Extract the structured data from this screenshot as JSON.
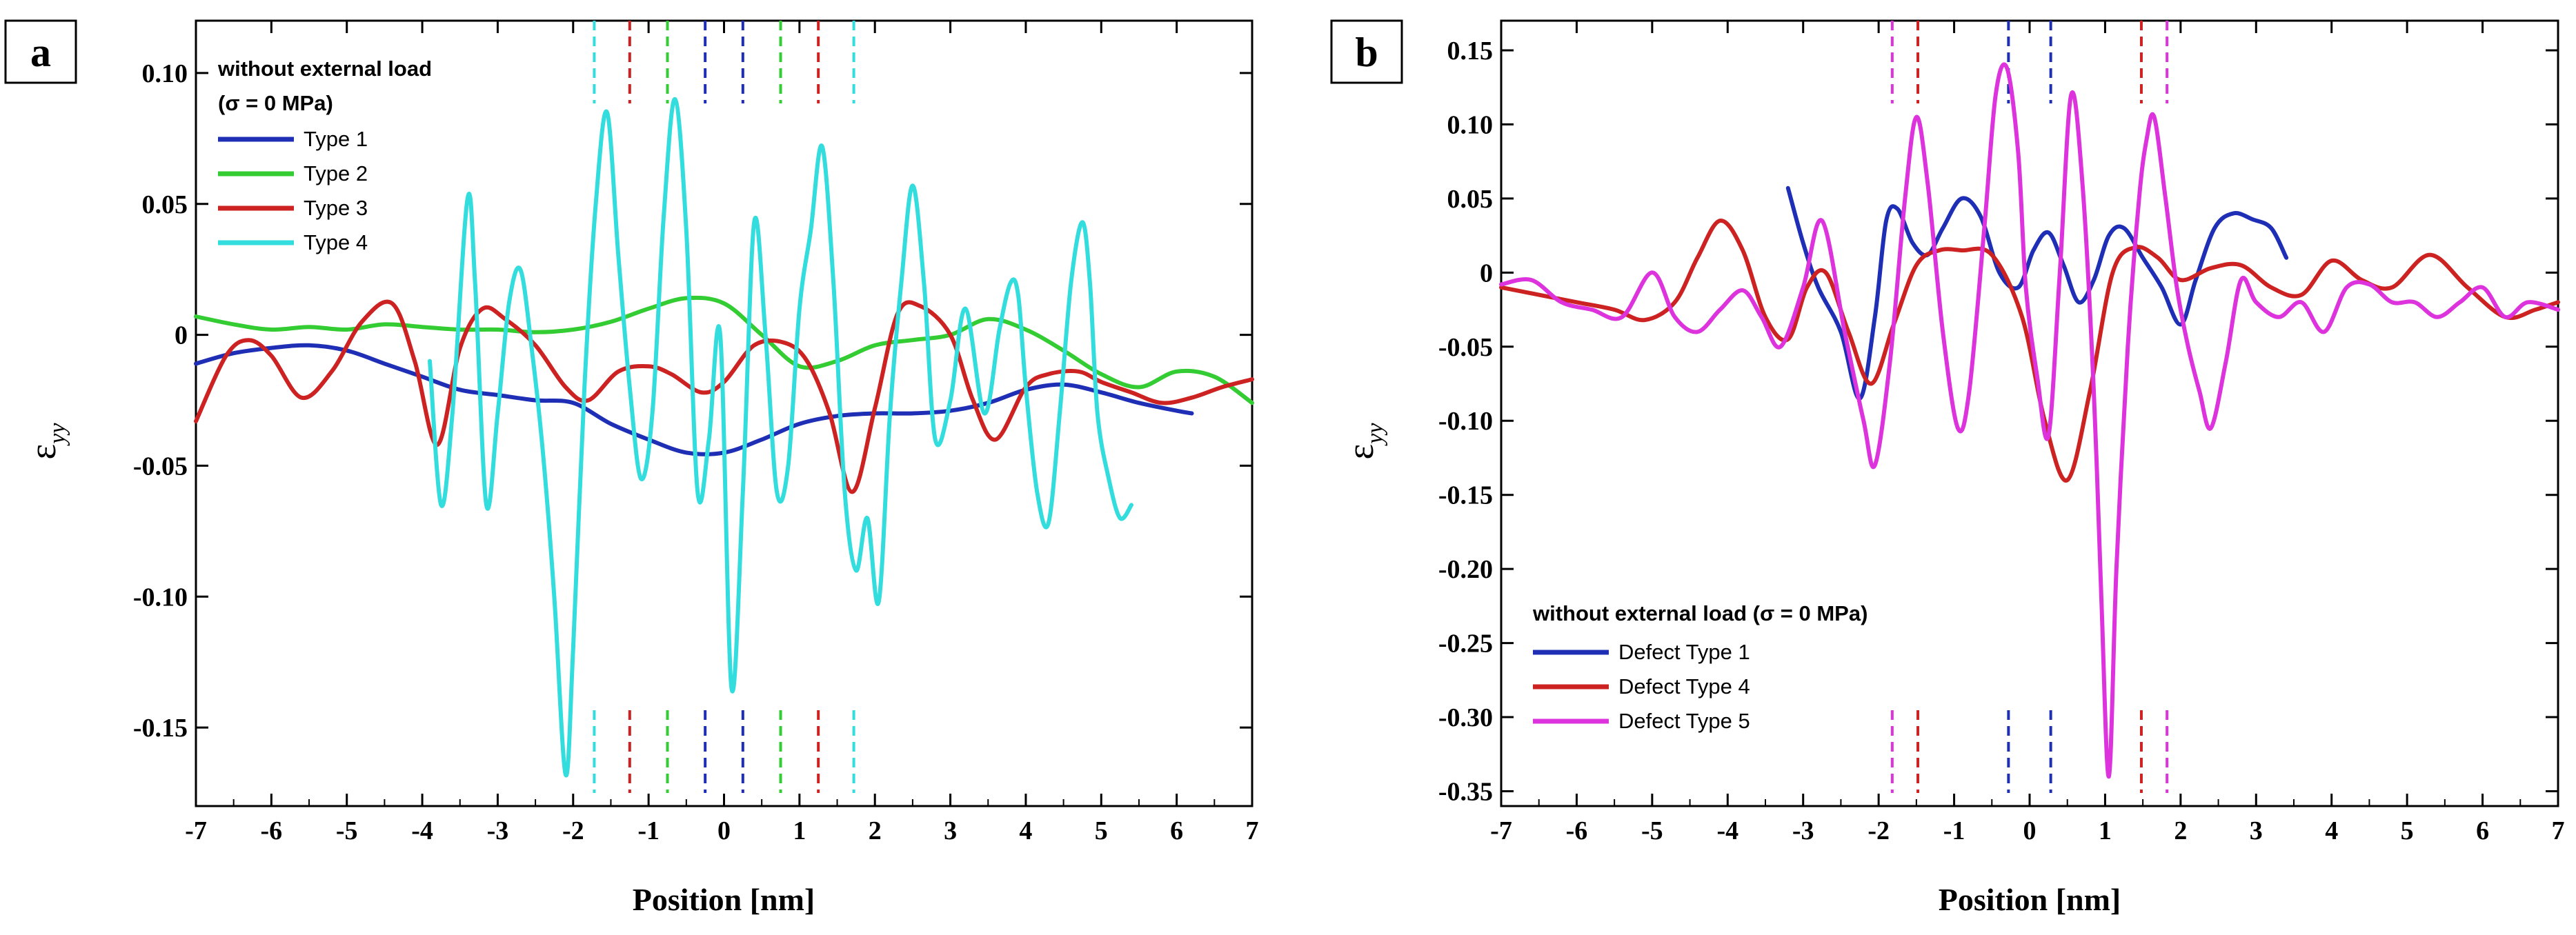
{
  "chart_data": [
    {
      "type": "line",
      "panel_label": "a",
      "xlabel": "Position [nm]",
      "ylabel": "ε",
      "ylabel_sub": "yy",
      "xlim": [
        -7,
        7
      ],
      "ylim": [
        -0.18,
        0.12
      ],
      "xticks": [
        -7,
        -6,
        -5,
        -4,
        -3,
        -2,
        -1,
        0,
        1,
        2,
        3,
        4,
        5,
        6,
        7
      ],
      "xtick_labels": [
        "-7",
        "-6",
        "-5",
        "-4",
        "-3",
        "-2",
        "-1",
        "0",
        "1",
        "2",
        "3",
        "4",
        "5",
        "6",
        "7"
      ],
      "yticks": [
        0.1,
        0.05,
        0,
        -0.05,
        -0.1,
        -0.15
      ],
      "ytick_labels": [
        "0.10",
        "0.05",
        "0",
        "-0.05",
        "-0.10",
        "-0.15"
      ],
      "legend_title_line1": "without external load",
      "legend_title_line2": "(σ = 0 MPa)",
      "legend_position": "top-left",
      "series": [
        {
          "name": "Type 1",
          "color": "#1f2fb5",
          "x": [
            -7,
            -6.5,
            -6,
            -5.5,
            -5,
            -4.5,
            -4,
            -3.5,
            -3,
            -2.5,
            -2,
            -1.5,
            -1,
            -0.5,
            0,
            0.5,
            1,
            1.5,
            2,
            2.5,
            3,
            3.5,
            4,
            4.5,
            5,
            5.5,
            6,
            6.2
          ],
          "y": [
            -0.011,
            -0.007,
            -0.005,
            -0.004,
            -0.006,
            -0.011,
            -0.016,
            -0.021,
            -0.023,
            -0.025,
            -0.026,
            -0.034,
            -0.04,
            -0.045,
            -0.045,
            -0.04,
            -0.034,
            -0.031,
            -0.03,
            -0.03,
            -0.029,
            -0.026,
            -0.021,
            -0.019,
            -0.022,
            -0.026,
            -0.029,
            -0.03
          ]
        },
        {
          "name": "Type 2",
          "color": "#33cc33",
          "x": [
            -7,
            -6.5,
            -6,
            -5.5,
            -5,
            -4.5,
            -4,
            -3.5,
            -3,
            -2.5,
            -2,
            -1.5,
            -1,
            -0.5,
            0,
            0.5,
            1,
            1.5,
            2,
            2.5,
            3,
            3.5,
            4,
            4.5,
            5,
            5.5,
            6,
            6.5,
            7
          ],
          "y": [
            0.007,
            0.004,
            0.002,
            0.003,
            0.002,
            0.004,
            0.003,
            0.002,
            0.002,
            0.001,
            0.002,
            0.005,
            0.01,
            0.014,
            0.012,
            0.0,
            -0.012,
            -0.01,
            -0.004,
            -0.002,
            0.0,
            0.006,
            0.002,
            -0.006,
            -0.015,
            -0.02,
            -0.014,
            -0.016,
            -0.026
          ]
        },
        {
          "name": "Type 3",
          "color": "#cc2222",
          "x": [
            -7,
            -6.6,
            -6.3,
            -6,
            -5.6,
            -5.2,
            -4.8,
            -4.4,
            -4.1,
            -3.8,
            -3.5,
            -3.2,
            -2.9,
            -2.5,
            -2.1,
            -1.8,
            -1.4,
            -1.0,
            -0.7,
            -0.3,
            0.0,
            0.4,
            0.8,
            1.1,
            1.4,
            1.7,
            2.0,
            2.3,
            2.6,
            3.0,
            3.3,
            3.6,
            4.0,
            4.3,
            4.7,
            5.0,
            5.4,
            5.8,
            6.2,
            6.6,
            7.0
          ],
          "y": [
            -0.033,
            -0.008,
            -0.002,
            -0.008,
            -0.024,
            -0.014,
            0.005,
            0.012,
            -0.01,
            -0.042,
            -0.005,
            0.01,
            0.006,
            -0.004,
            -0.02,
            -0.025,
            -0.014,
            -0.012,
            -0.015,
            -0.022,
            -0.018,
            -0.004,
            -0.003,
            -0.01,
            -0.03,
            -0.06,
            -0.028,
            0.008,
            0.011,
            0.0,
            -0.025,
            -0.04,
            -0.02,
            -0.015,
            -0.014,
            -0.018,
            -0.022,
            -0.026,
            -0.024,
            -0.02,
            -0.017
          ]
        },
        {
          "name": "Type 4",
          "color": "#33dddd",
          "x": [
            -3.9,
            -3.75,
            -3.6,
            -3.4,
            -3.3,
            -3.15,
            -3.0,
            -2.85,
            -2.7,
            -2.55,
            -2.4,
            -2.25,
            -2.1,
            -2.0,
            -1.85,
            -1.7,
            -1.55,
            -1.4,
            -1.25,
            -1.1,
            -0.95,
            -0.8,
            -0.65,
            -0.5,
            -0.35,
            -0.2,
            -0.05,
            0.1,
            0.25,
            0.4,
            0.55,
            0.7,
            0.85,
            1.0,
            1.15,
            1.3,
            1.45,
            1.6,
            1.75,
            1.9,
            2.05,
            2.2,
            2.35,
            2.5,
            2.65,
            2.8,
            3.0,
            3.2,
            3.45,
            3.65,
            3.8,
            3.9,
            4.0,
            4.15,
            4.3,
            4.45,
            4.6,
            4.75,
            4.85,
            4.95,
            5.1,
            5.25,
            5.4
          ],
          "y": [
            -0.01,
            -0.065,
            -0.03,
            0.052,
            0.02,
            -0.065,
            -0.03,
            0.012,
            0.025,
            -0.005,
            -0.045,
            -0.1,
            -0.168,
            -0.12,
            -0.02,
            0.05,
            0.085,
            0.03,
            -0.02,
            -0.055,
            -0.03,
            0.045,
            0.09,
            0.04,
            -0.06,
            -0.04,
            0.0,
            -0.135,
            -0.06,
            0.043,
            0.0,
            -0.06,
            -0.05,
            0.01,
            0.04,
            0.072,
            0.02,
            -0.06,
            -0.09,
            -0.07,
            -0.102,
            -0.03,
            0.02,
            0.057,
            0.02,
            -0.04,
            -0.025,
            0.01,
            -0.03,
            0.002,
            0.02,
            0.015,
            -0.02,
            -0.06,
            -0.072,
            -0.03,
            0.02,
            0.043,
            0.02,
            -0.03,
            -0.055,
            -0.07,
            -0.065
          ]
        }
      ],
      "markers_top": [
        {
          "x": -1.72,
          "color": "#33dddd"
        },
        {
          "x": -1.25,
          "color": "#cc2222"
        },
        {
          "x": -0.75,
          "color": "#33cc33"
        },
        {
          "x": -0.25,
          "color": "#1f2fb5"
        },
        {
          "x": 0.25,
          "color": "#1f2fb5"
        },
        {
          "x": 0.75,
          "color": "#33cc33"
        },
        {
          "x": 1.25,
          "color": "#cc2222"
        },
        {
          "x": 1.72,
          "color": "#33dddd"
        }
      ]
    },
    {
      "type": "line",
      "panel_label": "b",
      "xlabel": "Position [nm]",
      "ylabel": "ε",
      "ylabel_sub": "yy",
      "xlim": [
        -7,
        7
      ],
      "ylim": [
        -0.36,
        0.17
      ],
      "xticks": [
        -7,
        -6,
        -5,
        -4,
        -3,
        -2,
        -1,
        0,
        1,
        2,
        3,
        4,
        5,
        6,
        7
      ],
      "xtick_labels": [
        "-7",
        "-6",
        "-5",
        "-4",
        "-3",
        "-2",
        "-1",
        "0",
        "1",
        "2",
        "3",
        "4",
        "5",
        "6",
        "7"
      ],
      "yticks": [
        0.15,
        0.1,
        0.05,
        0,
        -0.05,
        -0.1,
        -0.15,
        -0.2,
        -0.25,
        -0.3,
        -0.35
      ],
      "ytick_labels": [
        "0.15",
        "0.10",
        "0.05",
        "0",
        "-0.05",
        "-0.10",
        "-0.15",
        "-0.20",
        "-0.25",
        "-0.30",
        "-0.35"
      ],
      "legend_title_line1": "without external load (σ = 0 MPa)",
      "legend_title_line2": "",
      "legend_position": "bottom-left",
      "series": [
        {
          "name": "Defect Type 1",
          "color": "#1f2fb5",
          "x": [
            -3.2,
            -3.0,
            -2.8,
            -2.5,
            -2.25,
            -2.05,
            -1.9,
            -1.75,
            -1.55,
            -1.35,
            -1.15,
            -0.9,
            -0.65,
            -0.4,
            -0.15,
            0.05,
            0.25,
            0.45,
            0.65,
            0.85,
            1.05,
            1.25,
            1.5,
            1.75,
            2.0,
            2.2,
            2.45,
            2.7,
            2.95,
            3.2,
            3.4
          ],
          "y": [
            0.057,
            0.02,
            -0.01,
            -0.04,
            -0.085,
            -0.03,
            0.035,
            0.043,
            0.02,
            0.012,
            0.03,
            0.05,
            0.038,
            0.0,
            -0.01,
            0.015,
            0.027,
            0.005,
            -0.02,
            -0.005,
            0.025,
            0.03,
            0.01,
            -0.01,
            -0.035,
            -0.005,
            0.03,
            0.04,
            0.036,
            0.03,
            0.01
          ]
        },
        {
          "name": "Defect Type 4",
          "color": "#cc2222",
          "x": [
            -7.0,
            -6.5,
            -6.0,
            -5.5,
            -5.1,
            -4.7,
            -4.4,
            -4.1,
            -3.8,
            -3.5,
            -3.2,
            -2.95,
            -2.7,
            -2.4,
            -2.1,
            -1.8,
            -1.5,
            -1.2,
            -0.9,
            -0.5,
            -0.1,
            0.2,
            0.5,
            0.8,
            1.1,
            1.4,
            1.7,
            2.0,
            2.4,
            2.8,
            3.2,
            3.6,
            4.0,
            4.4,
            4.8,
            5.3,
            5.8,
            6.3,
            6.7,
            7.0
          ],
          "y": [
            -0.01,
            -0.015,
            -0.02,
            -0.025,
            -0.032,
            -0.02,
            0.01,
            0.035,
            0.015,
            -0.03,
            -0.045,
            -0.01,
            0.0,
            -0.04,
            -0.075,
            -0.035,
            0.005,
            0.015,
            0.015,
            0.012,
            -0.03,
            -0.1,
            -0.14,
            -0.08,
            0.0,
            0.017,
            0.01,
            -0.005,
            0.003,
            0.005,
            -0.01,
            -0.015,
            0.008,
            -0.005,
            -0.01,
            0.012,
            -0.01,
            -0.03,
            -0.025,
            -0.02
          ]
        },
        {
          "name": "Defect Type 5",
          "color": "#dd33dd",
          "x": [
            -7.0,
            -6.6,
            -6.2,
            -5.8,
            -5.4,
            -5.0,
            -4.7,
            -4.4,
            -4.1,
            -3.8,
            -3.55,
            -3.3,
            -3.0,
            -2.75,
            -2.45,
            -2.2,
            -2.05,
            -1.85,
            -1.65,
            -1.5,
            -1.35,
            -1.15,
            -0.95,
            -0.8,
            -0.6,
            -0.45,
            -0.3,
            -0.15,
            -0.05,
            0.1,
            0.25,
            0.4,
            0.55,
            0.7,
            0.85,
            0.95,
            1.05,
            1.15,
            1.3,
            1.45,
            1.55,
            1.65,
            1.8,
            1.95,
            2.1,
            2.25,
            2.4,
            2.6,
            2.8,
            3.0,
            3.3,
            3.6,
            3.9,
            4.2,
            4.5,
            4.8,
            5.1,
            5.4,
            5.7,
            6.0,
            6.3,
            6.6,
            7.0
          ],
          "y": [
            -0.008,
            -0.005,
            -0.02,
            -0.025,
            -0.03,
            0.0,
            -0.03,
            -0.04,
            -0.025,
            -0.012,
            -0.03,
            -0.05,
            -0.01,
            0.035,
            -0.04,
            -0.1,
            -0.13,
            -0.06,
            0.05,
            0.105,
            0.06,
            -0.04,
            -0.105,
            -0.08,
            0.03,
            0.12,
            0.138,
            0.08,
            -0.01,
            -0.07,
            -0.11,
            0.0,
            0.12,
            0.06,
            -0.08,
            -0.22,
            -0.34,
            -0.2,
            -0.05,
            0.05,
            0.09,
            0.105,
            0.05,
            -0.01,
            -0.05,
            -0.08,
            -0.105,
            -0.06,
            -0.005,
            -0.02,
            -0.03,
            -0.02,
            -0.04,
            -0.01,
            -0.008,
            -0.02,
            -0.02,
            -0.03,
            -0.02,
            -0.01,
            -0.03,
            -0.02,
            -0.025
          ]
        }
      ],
      "markers_top": [
        {
          "x": -1.82,
          "color": "#dd33dd"
        },
        {
          "x": -1.48,
          "color": "#cc2222"
        },
        {
          "x": -0.28,
          "color": "#1f2fb5"
        },
        {
          "x": 0.28,
          "color": "#1f2fb5"
        },
        {
          "x": 1.48,
          "color": "#cc2222"
        },
        {
          "x": 1.82,
          "color": "#dd33dd"
        }
      ]
    }
  ]
}
